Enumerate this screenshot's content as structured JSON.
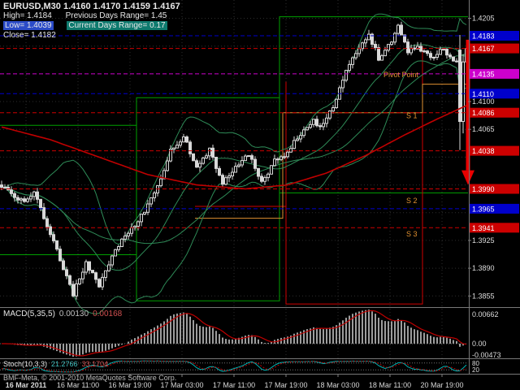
{
  "header": {
    "line1": "EURUSD,M30 1.4160 1.4170 1.4159 1.4167",
    "high": "High= 1.4184",
    "prev_range": "Previous Days Range= 1.45",
    "low": "Low= 1.4039",
    "curr_range": "Current Days Range= 0.17",
    "close": "Close= 1.4182"
  },
  "watermark": "BMF-Meta, © 2001-2010 MetaQuotes Software Corp.",
  "colors": {
    "background": "#000000",
    "grid": "#2e2e2e",
    "candle": "#d8d8d8",
    "bands": "#2e8b57",
    "ma_red": "#c00000",
    "macd_hist": "#9c9c9c",
    "macd_signal": "#c00000",
    "stoch_main": "#00b3b3",
    "stoch_signal": "#c00000",
    "level_blue": "#0000cc",
    "level_red": "#cc0000",
    "level_magenta": "#cc00cc",
    "segment_green": "#00a000",
    "segment_red": "#d00000",
    "segment_orange": "#e09030",
    "pivot_text": "#e09030",
    "arrow": "#e80000"
  },
  "time_axis": [
    "16 Mar 2011",
    "16 Mar 11:00",
    "16 Mar 19:00",
    "17 Mar 03:00",
    "17 Mar 11:00",
    "17 Mar 19:00",
    "18 Mar 03:00",
    "18 Mar 11:00",
    "20 Mar 19:00"
  ],
  "price_axis_labels": [
    "1.4205",
    "1.4100",
    "1.4065",
    "1.3925",
    "1.3890",
    "1.3855"
  ],
  "grid_prices": [
    1.4205,
    1.417,
    1.4135,
    1.41,
    1.4065,
    1.403,
    1.3995,
    1.396,
    1.3925,
    1.389,
    1.3855
  ],
  "macd_panel": {
    "name": "MACD(5,35,5)",
    "value1": "0.00130",
    "value2": "0.00168",
    "axis_top": "0.00662",
    "axis_zero": "0.00",
    "axis_bottom": "-0.00473"
  },
  "stoch_panel": {
    "name": "Stoch(10,3,3)",
    "value1": "21.2766",
    "value2": "33.1704",
    "axis_upper": "80",
    "axis_lower": "20"
  },
  "chart_data": {
    "type": "candlestick",
    "symbol": "EURUSD",
    "timeframe": "M30",
    "quote": {
      "open": 1.416,
      "high": 1.417,
      "low": 1.4159,
      "close": 1.4167
    },
    "day_info": {
      "high": 1.4184,
      "low": 1.4039,
      "close": 1.4182,
      "previous_days_range": "1.45",
      "current_days_range": "0.17"
    },
    "price_range": [
      1.3842,
      1.4226
    ],
    "candle_count": 144,
    "price_waypoints": [
      [
        0,
        1.3995
      ],
      [
        6,
        1.3975
      ],
      [
        10,
        1.3985
      ],
      [
        14,
        1.3945
      ],
      [
        18,
        1.39
      ],
      [
        22,
        1.3858
      ],
      [
        26,
        1.3895
      ],
      [
        30,
        1.387
      ],
      [
        34,
        1.3905
      ],
      [
        38,
        1.393
      ],
      [
        42,
        1.3948
      ],
      [
        48,
        1.3992
      ],
      [
        52,
        1.404
      ],
      [
        56,
        1.4055
      ],
      [
        60,
        1.402
      ],
      [
        64,
        1.4038
      ],
      [
        68,
        1.3995
      ],
      [
        72,
        1.4018
      ],
      [
        76,
        1.4035
      ],
      [
        80,
        1.3998
      ],
      [
        84,
        1.4025
      ],
      [
        88,
        1.4035
      ],
      [
        92,
        1.406
      ],
      [
        96,
        1.4075
      ],
      [
        98,
        1.4065
      ],
      [
        102,
        1.4095
      ],
      [
        106,
        1.414
      ],
      [
        110,
        1.417
      ],
      [
        113,
        1.4185
      ],
      [
        116,
        1.4155
      ],
      [
        119,
        1.417
      ],
      [
        122,
        1.4195
      ],
      [
        125,
        1.4165
      ],
      [
        128,
        1.4168
      ],
      [
        132,
        1.4155
      ],
      [
        136,
        1.4165
      ],
      [
        140,
        1.415
      ],
      [
        143,
        1.4167
      ]
    ],
    "final_candles": [
      [
        1.4165,
        1.4184,
        1.4039,
        1.4075
      ],
      [
        1.4075,
        1.416,
        1.406,
        1.415
      ],
      [
        1.415,
        1.4175,
        1.412,
        1.4167
      ]
    ],
    "ma_red_waypoints": [
      [
        0,
        1.4068
      ],
      [
        15,
        1.4052
      ],
      [
        30,
        1.403
      ],
      [
        45,
        1.4008
      ],
      [
        60,
        1.3995
      ],
      [
        75,
        1.399
      ],
      [
        88,
        1.3995
      ],
      [
        100,
        1.401
      ],
      [
        112,
        1.4032
      ],
      [
        124,
        1.4058
      ],
      [
        134,
        1.4078
      ],
      [
        143,
        1.4095
      ]
    ],
    "indicators": [
      {
        "name": "Bollinger Bands",
        "period": 20,
        "deviation": 2
      },
      {
        "name": "SMA",
        "period": 40
      },
      {
        "name": "MACD",
        "fast": 5,
        "slow": 35,
        "signal": 5,
        "current": [
          0.0013,
          0.00168
        ]
      },
      {
        "name": "Stochastic",
        "k": 10,
        "d": 3,
        "slowing": 3,
        "current": [
          21.2766,
          33.1704
        ]
      }
    ],
    "levels": [
      {
        "price": 1.4183,
        "color": "blue"
      },
      {
        "price": 1.4167,
        "color": "red"
      },
      {
        "price": 1.4135,
        "color": "magenta"
      },
      {
        "price": 1.411,
        "color": "blue"
      },
      {
        "price": 1.4086,
        "color": "red"
      },
      {
        "price": 1.4038,
        "color": "red"
      },
      {
        "price": 1.399,
        "color": "red"
      },
      {
        "price": 1.3965,
        "color": "blue"
      },
      {
        "price": 1.3941,
        "color": "red"
      }
    ],
    "annotations": [
      {
        "text": "Pivot Point",
        "i": 118,
        "price": 1.4131
      },
      {
        "text": "S 1",
        "i": 125,
        "price": 1.4079
      },
      {
        "text": "S 2",
        "i": 125,
        "price": 1.3972
      },
      {
        "text": "S 3",
        "i": 125,
        "price": 1.393
      }
    ],
    "segments": [
      {
        "color": "green",
        "points": [
          [
            0,
            1.407
          ],
          [
            42,
            1.407
          ],
          [
            42,
            1.4105
          ],
          [
            86,
            1.4105
          ],
          [
            86,
            1.4207
          ],
          [
            144,
            1.4207
          ]
        ]
      },
      {
        "color": "green",
        "points": [
          [
            0,
            1.3907
          ],
          [
            42,
            1.3907
          ],
          [
            42,
            1.3849
          ],
          [
            86,
            1.3849
          ],
          [
            86,
            1.3985
          ],
          [
            144,
            1.3985
          ]
        ]
      },
      {
        "color": "green",
        "points": [
          [
            86,
            1.4207
          ],
          [
            86,
            1.3849
          ]
        ]
      },
      {
        "color": "green",
        "points": [
          [
            42,
            1.4105
          ],
          [
            42,
            1.3849
          ]
        ]
      },
      {
        "color": "red",
        "points": [
          [
            60,
            1.3968
          ],
          [
            88,
            1.3968
          ]
        ]
      },
      {
        "color": "red",
        "points": [
          [
            88,
            1.4125
          ],
          [
            88,
            1.3845
          ],
          [
            130,
            1.3845
          ],
          [
            130,
            1.417
          ]
        ]
      },
      {
        "color": "orange",
        "points": [
          [
            60,
            1.3953
          ],
          [
            87,
            1.3953
          ],
          [
            87,
            1.4086
          ],
          [
            130,
            1.4086
          ],
          [
            130,
            1.4122
          ],
          [
            144,
            1.4122
          ]
        ]
      }
    ],
    "arrow": {
      "from_price": 1.4178,
      "to_price": 1.3995
    }
  }
}
